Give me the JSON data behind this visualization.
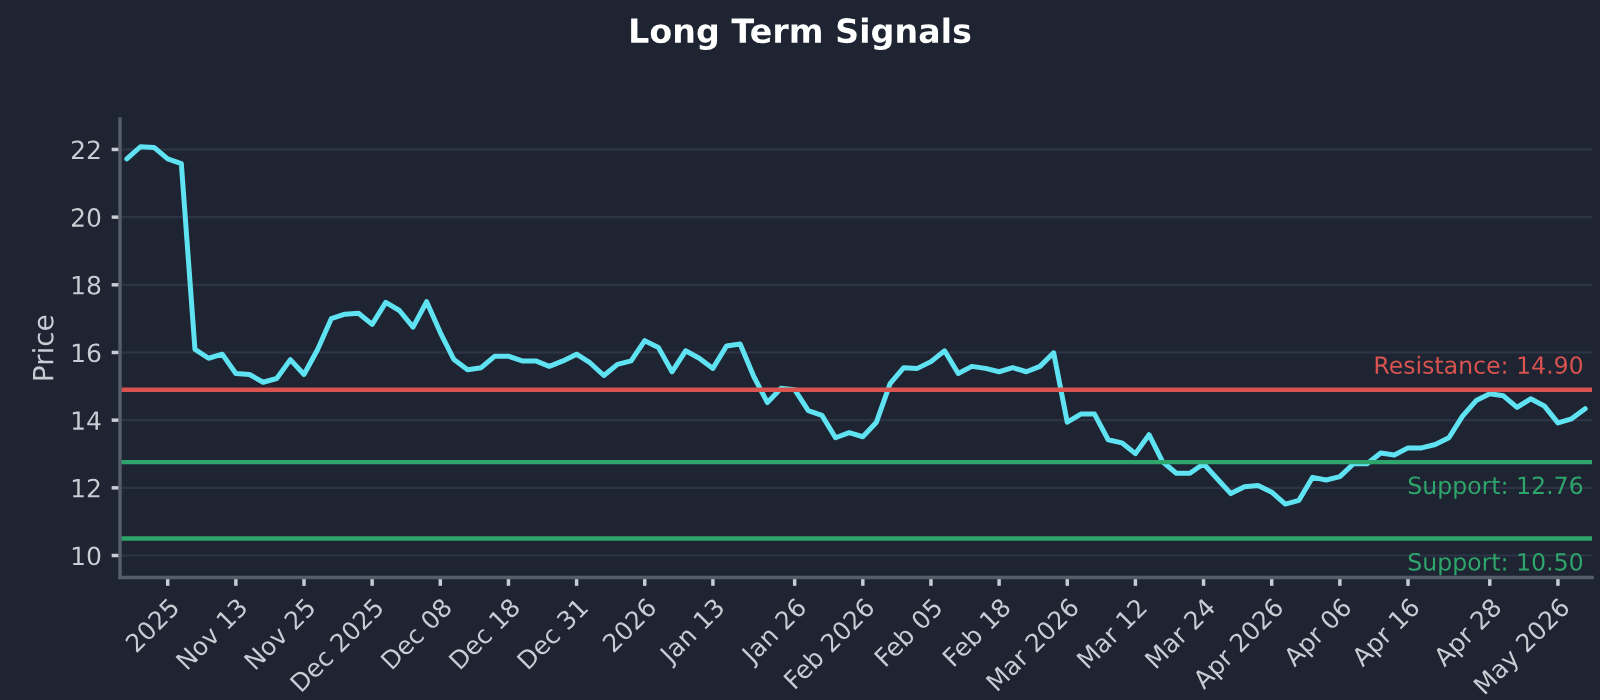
{
  "chart_data": {
    "type": "line",
    "title": "Long Term Signals",
    "ylabel": "Price",
    "categories": [
      null,
      null,
      null,
      "2025",
      null,
      null,
      null,
      null,
      "Nov 13",
      null,
      null,
      null,
      null,
      "Nov 25",
      null,
      null,
      null,
      null,
      "Dec 2025",
      null,
      null,
      null,
      null,
      "Dec 08",
      null,
      null,
      null,
      null,
      "Dec 18",
      null,
      null,
      null,
      null,
      "Dec 31",
      null,
      null,
      null,
      null,
      "2026",
      null,
      null,
      null,
      null,
      "Jan 13",
      null,
      null,
      null,
      null,
      null,
      "Jan 26",
      null,
      null,
      null,
      null,
      "Feb 2026",
      null,
      null,
      null,
      null,
      "Feb 05",
      null,
      null,
      null,
      null,
      "Feb 18",
      null,
      null,
      null,
      null,
      "Mar 2026",
      null,
      null,
      null,
      null,
      "Mar 12",
      null,
      null,
      null,
      null,
      "Mar 24",
      null,
      null,
      null,
      null,
      "Apr 2026",
      null,
      null,
      null,
      null,
      "Apr 06",
      null,
      null,
      null,
      null,
      "Apr 16",
      null,
      null,
      null,
      null,
      null,
      "Apr 28",
      null,
      null,
      null,
      null,
      "May 2026",
      null,
      null
    ],
    "series": [
      {
        "color": "#5fe3f2",
        "values": [
          21.72,
          22.08,
          22.06,
          21.72,
          21.58,
          16.09,
          15.83,
          15.95,
          15.38,
          15.35,
          15.12,
          15.23,
          15.79,
          15.35,
          16.09,
          17.0,
          17.13,
          17.16,
          16.83,
          17.48,
          17.24,
          16.75,
          17.5,
          16.59,
          15.79,
          15.49,
          15.55,
          15.89,
          15.89,
          15.75,
          15.75,
          15.59,
          15.75,
          15.95,
          15.69,
          15.32,
          15.65,
          15.75,
          16.35,
          16.15,
          15.43,
          16.05,
          15.83,
          15.53,
          16.19,
          16.25,
          15.29,
          14.52,
          14.94,
          14.9,
          14.28,
          14.14,
          13.48,
          13.63,
          13.51,
          13.94,
          15.08,
          15.55,
          15.53,
          15.73,
          16.05,
          15.38,
          15.59,
          15.53,
          15.43,
          15.55,
          15.43,
          15.59,
          15.99,
          13.94,
          14.18,
          14.18,
          13.42,
          13.33,
          13.01,
          13.57,
          12.77,
          12.43,
          12.43,
          12.71,
          12.27,
          11.83,
          12.03,
          12.07,
          11.87,
          11.52,
          11.63,
          12.31,
          12.23,
          12.33,
          12.71,
          12.71,
          13.03,
          12.97,
          13.18,
          13.18,
          13.28,
          13.48,
          14.12,
          14.58,
          14.78,
          14.72,
          14.38,
          14.63,
          14.42,
          13.92,
          14.04,
          14.34
        ]
      }
    ],
    "ylim": [
      9.35,
      22.9
    ],
    "yticks": [
      10,
      12,
      14,
      16,
      18,
      20,
      22
    ],
    "ref_lines": [
      {
        "axis": "y",
        "value": 14.9,
        "label": "Resistance: 14.90",
        "color": "#d9534f"
      },
      {
        "axis": "y",
        "value": 12.76,
        "label": "Support: 12.76",
        "color": "#2ea66b"
      },
      {
        "axis": "y",
        "value": 10.5,
        "label": "Support: 10.50",
        "color": "#2ea66b"
      }
    ],
    "grid": "y",
    "marker": "none",
    "line_style": "solid",
    "legend": false
  }
}
